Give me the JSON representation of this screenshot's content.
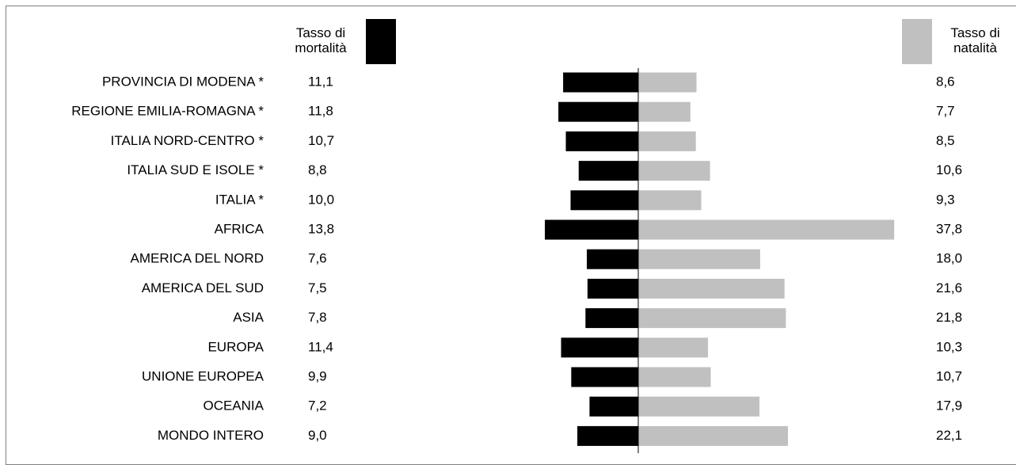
{
  "chart_data": {
    "type": "bar",
    "orientation": "horizontal-diverging",
    "headers": {
      "left": "Tasso di mortalità",
      "right": "Tasso di natalità"
    },
    "categories": [
      "PROVINCIA DI MODENA *",
      "REGIONE EMILIA-ROMAGNA *",
      "ITALIA NORD-CENTRO *",
      "ITALIA SUD E ISOLE *",
      "ITALIA *",
      "AFRICA",
      "AMERICA DEL NORD",
      "AMERICA DEL SUD",
      "ASIA",
      "EUROPA",
      "UNIONE EUROPEA",
      "OCEANIA",
      "MONDO INTERO"
    ],
    "series": [
      {
        "name": "Tasso di mortalità",
        "side": "left",
        "color": "#000000",
        "values": [
          11.1,
          11.8,
          10.7,
          8.8,
          10.0,
          13.8,
          7.6,
          7.5,
          7.8,
          11.4,
          9.9,
          7.2,
          9.0
        ],
        "labels": [
          "11,1",
          "11,8",
          "10,7",
          "8,8",
          "10,0",
          "13,8",
          "7,6",
          "7,5",
          "7,8",
          "11,4",
          "9,9",
          "7,2",
          "9,0"
        ]
      },
      {
        "name": "Tasso di natalità",
        "side": "right",
        "color": "#c0c0c0",
        "values": [
          8.6,
          7.7,
          8.5,
          10.6,
          9.3,
          37.8,
          18.0,
          21.6,
          21.8,
          10.3,
          10.7,
          17.9,
          22.1
        ],
        "labels": [
          "8,6",
          "7,7",
          "8,5",
          "10,6",
          "9,3",
          "37,8",
          "18,0",
          "21,6",
          "21,8",
          "10,3",
          "10,7",
          "17,9",
          "22,1"
        ]
      }
    ],
    "grid": false,
    "legend": "swatches-in-header"
  }
}
